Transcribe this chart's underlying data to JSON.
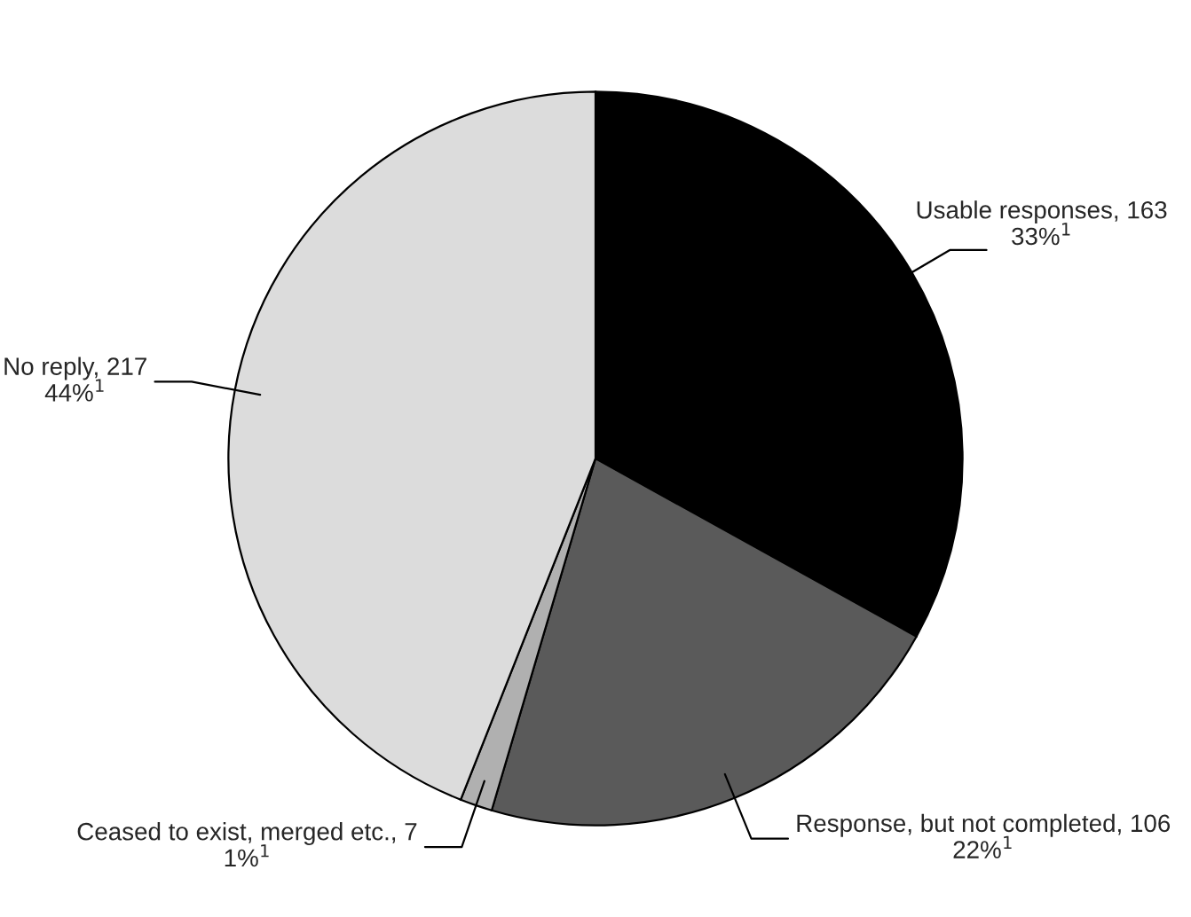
{
  "chart_data": {
    "type": "pie",
    "categories": [
      "Usable responses, 163",
      "Response, but not completed, 106",
      "Ceased to exist, merged etc., 7",
      "No reply, 217"
    ],
    "values": [
      163,
      106,
      7,
      217
    ],
    "annotations": [
      "33%$^{1}$",
      "22%$^{1}$",
      "1%$^{1}$",
      "44%$^{1}$"
    ],
    "colors": [
      "#000000",
      "#5a5a5a",
      "#b0b0b0",
      "#dcdcdc"
    ]
  }
}
